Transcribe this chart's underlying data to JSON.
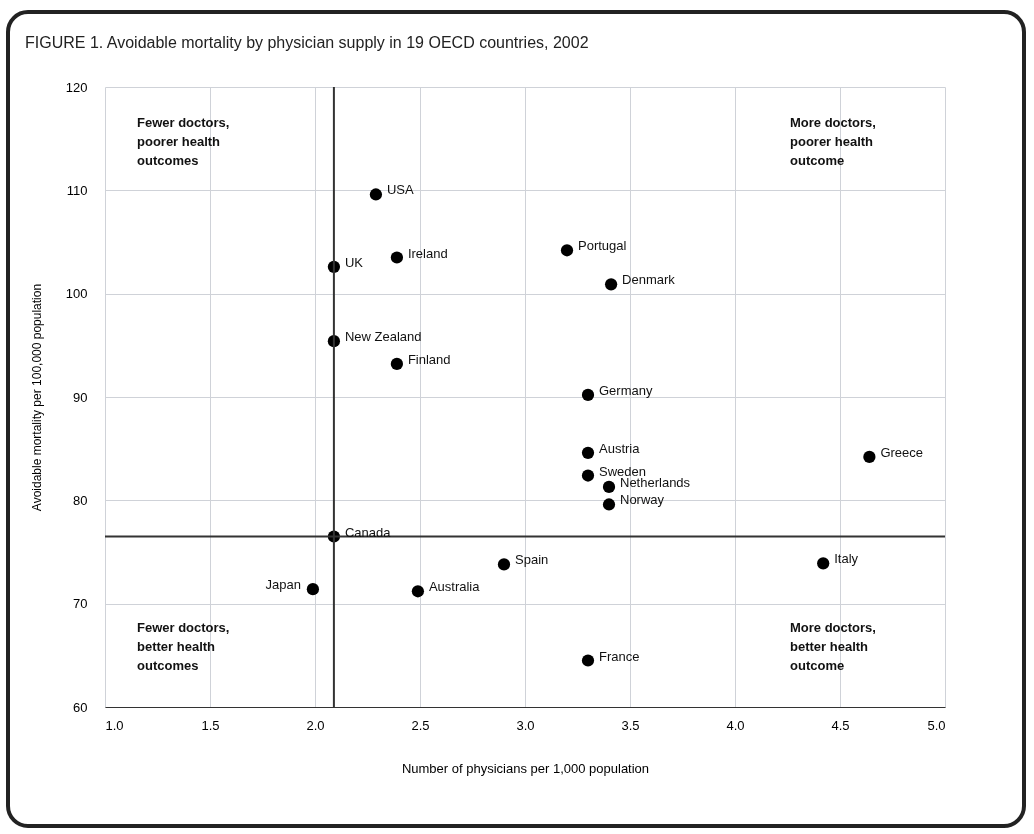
{
  "chart_data": {
    "type": "scatter",
    "title": "FIGURE 1. Avoidable mortality by physician supply in 19 OECD countries, 2002",
    "xlabel": "Number of physicians per 1,000 population",
    "ylabel": "Avoidable mortality per 100,000 population",
    "x": [
      2.29,
      2.39,
      2.09,
      2.09,
      2.39,
      3.2,
      3.41,
      3.3,
      3.3,
      3.3,
      3.4,
      3.4,
      4.64,
      2.09,
      2.9,
      1.99,
      2.49,
      4.42,
      3.3
    ],
    "values": [
      109.6,
      103.5,
      102.6,
      95.4,
      93.2,
      104.2,
      100.9,
      90.2,
      84.6,
      82.4,
      81.3,
      79.6,
      84.2,
      76.5,
      73.8,
      71.4,
      71.2,
      73.9,
      64.5
    ],
    "color": "#000000",
    "marker": "circle",
    "grid": true,
    "xlim": [
      1,
      5
    ],
    "ylim": [
      60,
      120
    ],
    "xticks": [
      {
        "value": 1,
        "label": "1.0"
      },
      {
        "value": 1.5,
        "label": "1.5"
      },
      {
        "value": 2,
        "label": "2.0"
      },
      {
        "value": 2.5,
        "label": "2.5"
      },
      {
        "value": 3,
        "label": "3.0"
      },
      {
        "value": 3.5,
        "label": "3.5"
      },
      {
        "value": 4,
        "label": "4.0"
      },
      {
        "value": 4.5,
        "label": "4.5"
      },
      {
        "value": 5,
        "label": "5.0"
      }
    ],
    "yticks": [
      60,
      70,
      80,
      90,
      100,
      110,
      120
    ],
    "ref_lines": [
      {
        "axis": "x",
        "value": 2.09,
        "label": null
      },
      {
        "axis": "y",
        "value": 76.5,
        "label": null
      }
    ],
    "annotations": [
      "Fewer doctors,\npoorer health\noutcomes",
      "More doctors,\npoorer health\noutcome",
      "Fewer doctors,\nbetter health\noutcomes",
      "More doctors,\nbetter health\noutcome",
      {
        "text": "USA",
        "x": 2.29,
        "y": 109.6
      },
      {
        "text": "Ireland",
        "x": 2.39,
        "y": 103.5
      },
      {
        "text": "UK",
        "x": 2.09,
        "y": 102.6
      },
      {
        "text": "New Zealand",
        "x": 2.09,
        "y": 95.4
      },
      {
        "text": "Finland",
        "x": 2.39,
        "y": 93.2
      },
      {
        "text": "Portugal",
        "x": 3.2,
        "y": 104.2
      },
      {
        "text": "Denmark",
        "x": 3.41,
        "y": 100.9
      },
      {
        "text": "Germany",
        "x": 3.3,
        "y": 90.2
      },
      {
        "text": "Austria",
        "x": 3.3,
        "y": 84.6
      },
      {
        "text": "Sweden",
        "x": 3.3,
        "y": 82.4
      },
      {
        "text": "Netherlands",
        "x": 3.4,
        "y": 81.3
      },
      {
        "text": "Norway",
        "x": 3.4,
        "y": 79.6
      },
      {
        "text": "Greece",
        "x": 4.64,
        "y": 84.2
      },
      {
        "text": "Canada",
        "x": 2.09,
        "y": 76.5
      },
      {
        "text": "Spain",
        "x": 2.9,
        "y": 73.8
      },
      {
        "text": "Japan",
        "x": 1.99,
        "y": 71.4
      },
      {
        "text": "Australia",
        "x": 2.49,
        "y": 71.2
      },
      {
        "text": "Italy",
        "x": 4.42,
        "y": 73.9
      },
      {
        "text": "France",
        "x": 3.3,
        "y": 64.5
      }
    ]
  }
}
